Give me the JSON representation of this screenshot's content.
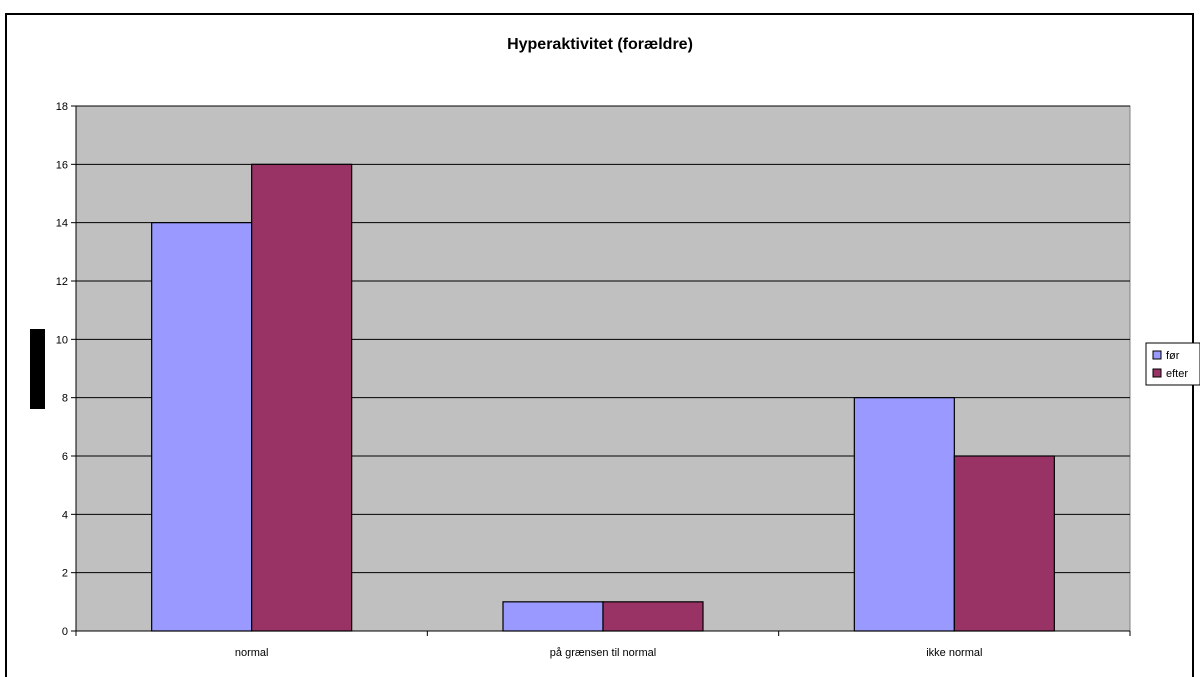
{
  "chart_data": {
    "type": "bar",
    "title": "Hyperaktivitet (forældre)",
    "xlabel": "",
    "ylabel": "",
    "categories": [
      "normal",
      "på grænsen til normal",
      "ikke normal"
    ],
    "series": [
      {
        "name": "før",
        "values": [
          14,
          1,
          8
        ],
        "color": "#9999ff"
      },
      {
        "name": "efter",
        "values": [
          16,
          1,
          6
        ],
        "color": "#993366"
      }
    ],
    "ylim": [
      0,
      18
    ],
    "yticks": [
      0,
      2,
      4,
      6,
      8,
      10,
      12,
      14,
      16,
      18
    ],
    "grid": true,
    "legend": "right",
    "plot_background": "#c0c0c0"
  }
}
